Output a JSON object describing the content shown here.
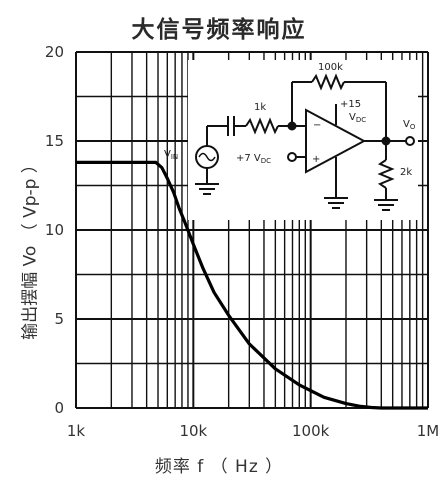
{
  "chart_data": {
    "type": "line",
    "title": "大信号频率响应",
    "xlabel": "频率 f （ Hz ）",
    "ylabel": "输出摆幅 Vo （ Vp-p ）",
    "x_scale": "log",
    "xlim": [
      1000,
      1000000
    ],
    "ylim": [
      0,
      20
    ],
    "x_ticks": [
      "1k",
      "10k",
      "100k",
      "1M"
    ],
    "y_ticks": [
      "0",
      "5",
      "10",
      "15",
      "20"
    ],
    "grid": true,
    "series": [
      {
        "x": [
          1000,
          3000,
          4800,
          5400,
          6000,
          6800,
          7600,
          8500,
          10000,
          12000,
          15000,
          20000,
          30000,
          50000,
          80000,
          130000,
          200000,
          260000,
          330000,
          400000,
          550000,
          1000000
        ],
        "y": [
          13.8,
          13.8,
          13.8,
          13.5,
          12.9,
          12.1,
          11.2,
          10.4,
          9.2,
          7.9,
          6.5,
          5.2,
          3.6,
          2.2,
          1.3,
          0.6,
          0.25,
          0.1,
          0.03,
          0,
          0,
          0
        ]
      }
    ]
  },
  "circuit": {
    "feedback_resistor": "100k",
    "input_resistor": "1k",
    "supply": "+15",
    "supply_sub": "DC",
    "bias": "+7 V",
    "bias_sub": "DC",
    "source": "V",
    "source_sub": "IN",
    "output": "V",
    "output_sub": "O",
    "load_resistor": "2k",
    "minus_sign": "−",
    "plus_sign": "+"
  }
}
